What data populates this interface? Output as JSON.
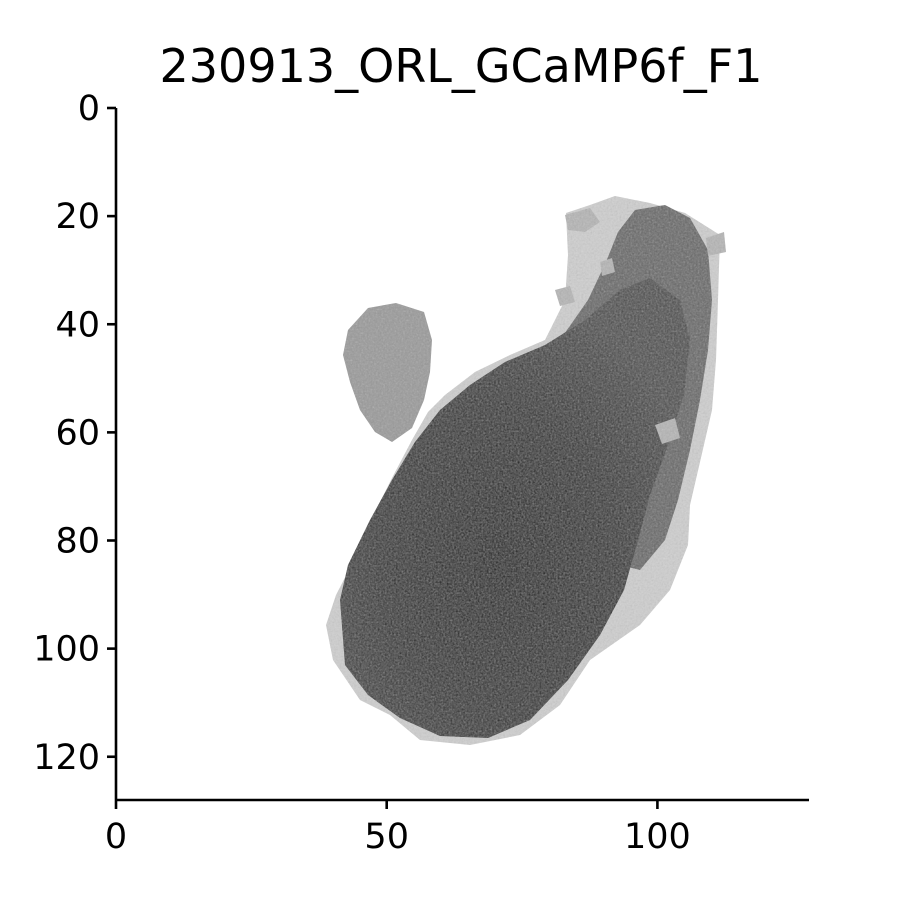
{
  "chart_data": {
    "type": "heatmap",
    "title": "230913_ORL_GCaMP6f_F1",
    "xlabel": "",
    "ylabel": "",
    "xlim": [
      0,
      128
    ],
    "ylim": [
      128,
      0
    ],
    "x_ticks": [
      0,
      50,
      100
    ],
    "y_ticks": [
      0,
      20,
      40,
      60,
      80,
      100,
      120
    ],
    "grid": false,
    "colormap": "grayscale",
    "colors": {
      "background": "#ffffff",
      "axis": "#000000",
      "dark": "#1a1a1a",
      "mid": "#555555",
      "light": "#9a9a9a",
      "faint": "#cfcfcf"
    },
    "image_description_regions": [
      {
        "name": "main-body",
        "intensity": "dark"
      },
      {
        "name": "upper-left-lobe",
        "intensity": "light"
      },
      {
        "name": "upper-right-tail",
        "intensity": "mid"
      },
      {
        "name": "outer-halo",
        "intensity": "faint"
      }
    ]
  }
}
